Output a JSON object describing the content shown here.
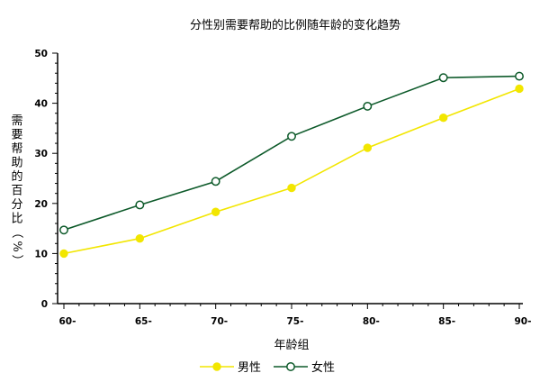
{
  "chart_data": {
    "type": "line",
    "title": "分性别需要帮助的比例随年龄的变化趋势",
    "xlabel": "年龄组",
    "ylabel": "需要帮助的百分比（%）",
    "categories": [
      "60-",
      "65-",
      "70-",
      "75-",
      "80-",
      "85-",
      "90-"
    ],
    "ylim": [
      0,
      50
    ],
    "yticks": [
      0,
      10,
      20,
      30,
      40,
      50
    ],
    "grid": false,
    "legend_position": "bottom",
    "series": [
      {
        "name": "男性",
        "values": [
          10.0,
          13.0,
          18.3,
          23.1,
          31.1,
          37.1,
          42.9
        ],
        "color": "#f2e600",
        "marker": "filled-circle"
      },
      {
        "name": "女性",
        "values": [
          14.7,
          19.7,
          24.4,
          33.4,
          39.4,
          45.1,
          45.4
        ],
        "color": "#0d5a2a",
        "marker": "open-circle"
      }
    ]
  }
}
